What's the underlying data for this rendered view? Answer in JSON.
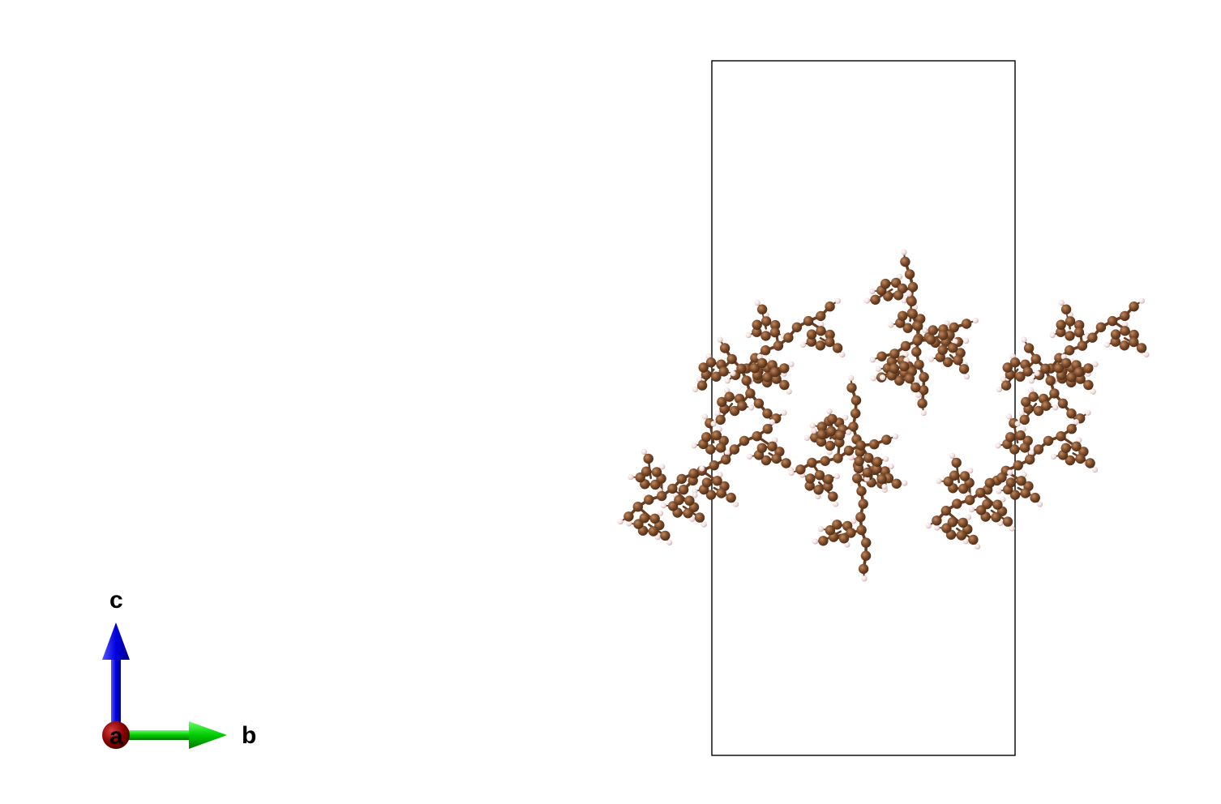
{
  "axes": {
    "a": {
      "label": "a",
      "color": "#8b0000"
    },
    "b": {
      "label": "b",
      "color": "#00cc00"
    },
    "c": {
      "label": "c",
      "color": "#0000dd"
    }
  },
  "colors": {
    "carbon": "#7a4a2a",
    "carbon_highlight": "#b07a52",
    "hydrogen": "#f2e2e2",
    "bond_carbon": "#6b3d20",
    "cell_edge": "#000000"
  }
}
